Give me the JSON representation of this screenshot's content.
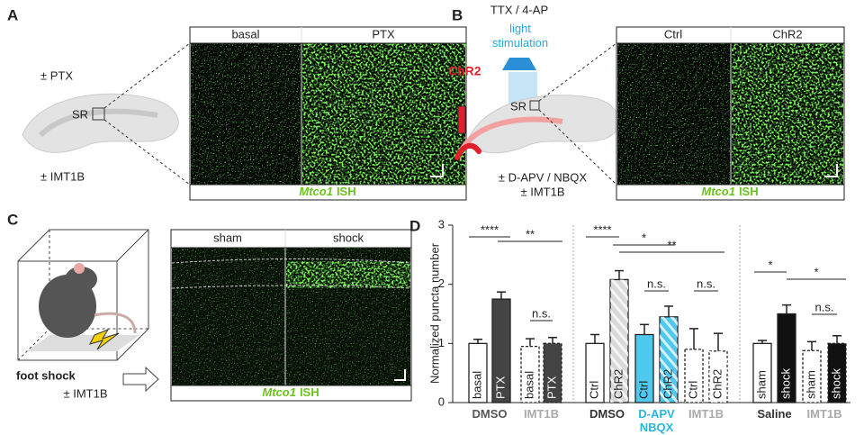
{
  "panel_a": {
    "letter": "A",
    "condition": "± PTX",
    "region": "SR",
    "inhibitor": "± IMT1B",
    "columns": [
      "basal",
      "PTX"
    ],
    "probe": "Mtco1",
    "method": "ISH"
  },
  "panel_b": {
    "letter": "B",
    "drugs": "TTX / 4-AP",
    "stimulation": "light stimulation",
    "opsin": "ChR2",
    "region": "SR",
    "antagonists": "± D-APV / NBQX",
    "inhibitor": "± IMT1B",
    "columns": [
      "Ctrl",
      "ChR2"
    ],
    "probe": "Mtco1",
    "method": "ISH"
  },
  "panel_c": {
    "letter": "C",
    "stimulus": "foot shock",
    "inhibitor": "± IMT1B",
    "columns": [
      "sham",
      "shock"
    ],
    "probe": "Mtco1",
    "method": "ISH"
  },
  "chart_data": {
    "type": "bar",
    "letter": "D",
    "y_label": "Normalized puncta number",
    "ylim": [
      0,
      3
    ],
    "yticks": [
      0,
      1,
      2,
      3
    ],
    "groups": [
      {
        "label": "DMSO",
        "color": "#555555",
        "categories": [
          "basal",
          "PTX"
        ],
        "values": [
          1.0,
          1.75
        ],
        "errors": [
          0.07,
          0.12
        ],
        "colors": [
          "#ffffff",
          "#444444"
        ],
        "hatched": [
          false,
          false
        ],
        "dashed": false
      },
      {
        "label": "IMT1B",
        "color": "#aaaaaa",
        "categories": [
          "basal",
          "PTX"
        ],
        "values": [
          0.95,
          1.0
        ],
        "errors": [
          0.13,
          0.1
        ],
        "colors": [
          "#ffffff",
          "#444444"
        ],
        "hatched": [
          false,
          false
        ],
        "dashed": true
      },
      {
        "label": "DMSO",
        "color": "#333333",
        "categories": [
          "Ctrl",
          "ChR2"
        ],
        "values": [
          1.0,
          2.08
        ],
        "errors": [
          0.15,
          0.15
        ],
        "colors": [
          "#ffffff",
          "#d9d9d9"
        ],
        "hatched": [
          false,
          true
        ],
        "dashed": false
      },
      {
        "label": "D-APV NBQX",
        "color": "#29b6e0",
        "categories": [
          "Ctrl",
          "ChR2"
        ],
        "values": [
          1.15,
          1.45
        ],
        "errors": [
          0.17,
          0.18
        ],
        "colors": [
          "#4fc8ee",
          "#4fc8ee"
        ],
        "hatched": [
          false,
          true
        ],
        "dashed": false
      },
      {
        "label": "IMT1B",
        "color": "#aaaaaa",
        "categories": [
          "Ctrl",
          "ChR2"
        ],
        "values": [
          0.9,
          0.87
        ],
        "errors": [
          0.35,
          0.3
        ],
        "colors": [
          "#ffffff",
          "#ffffff"
        ],
        "hatched": [
          false,
          true
        ],
        "dashed": true
      },
      {
        "label": "Saline",
        "color": "#333333",
        "categories": [
          "sham",
          "shock"
        ],
        "values": [
          1.0,
          1.5
        ],
        "errors": [
          0.05,
          0.15
        ],
        "colors": [
          "#ffffff",
          "#111111"
        ],
        "hatched": [
          false,
          false
        ],
        "dashed": false
      },
      {
        "label": "IMT1B",
        "color": "#aaaaaa",
        "categories": [
          "sham",
          "shock"
        ],
        "values": [
          0.88,
          1.0
        ],
        "errors": [
          0.15,
          0.13
        ],
        "colors": [
          "#ffffff",
          "#111111"
        ],
        "hatched": [
          false,
          false
        ],
        "dashed": true
      }
    ],
    "annotations": [
      "****",
      "**",
      "n.s.",
      "****",
      "*",
      "**",
      "n.s.",
      "n.s.",
      "*",
      "*",
      "n.s."
    ]
  }
}
